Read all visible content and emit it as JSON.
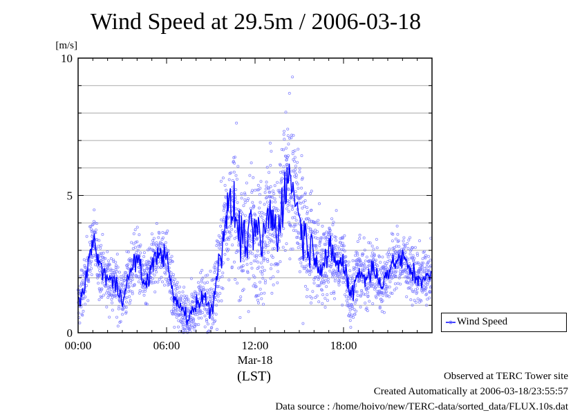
{
  "chart_data": {
    "type": "line",
    "title": "Wind Speed at 29.5m / 2006-03-18",
    "y_unit": "[m/s]",
    "ylim": [
      0,
      10
    ],
    "yticks": [
      0,
      5,
      10
    ],
    "xlim_hours": [
      0,
      24
    ],
    "xtick_labels": [
      "00:00",
      "06:00",
      "12:00",
      "18:00"
    ],
    "x_date_label": "Mar-18",
    "x_unit_label": "(LST)",
    "grid": "horizontal",
    "legend_placement": "right, outside plot",
    "series": [
      {
        "name": "Wind Speed",
        "color": "#0000ff",
        "marker_color": "#7777ff",
        "x_hours": [
          0,
          0.5,
          1,
          1.5,
          2,
          2.5,
          3,
          3.5,
          4,
          4.5,
          5,
          5.5,
          6,
          6.5,
          7,
          7.5,
          8,
          8.5,
          9,
          9.5,
          10,
          10.5,
          11,
          11.5,
          12,
          12.5,
          13,
          13.5,
          14,
          14.5,
          15,
          15.5,
          16,
          16.5,
          17,
          17.5,
          18,
          18.5,
          19,
          19.5,
          20,
          20.5,
          21,
          21.5,
          22,
          22.5,
          23,
          23.5
        ],
        "values": [
          1.0,
          1.9,
          3.4,
          2.4,
          2.0,
          1.8,
          1.3,
          2.1,
          2.8,
          1.7,
          2.4,
          3.0,
          2.7,
          1.2,
          0.9,
          0.5,
          1.1,
          1.3,
          0.8,
          2.3,
          4.3,
          4.6,
          3.5,
          3.4,
          3.8,
          3.2,
          4.5,
          3.4,
          5.4,
          5.6,
          4.1,
          3.3,
          3.0,
          2.4,
          2.9,
          2.6,
          2.5,
          1.3,
          2.3,
          2.0,
          2.3,
          1.8,
          2.2,
          2.6,
          2.7,
          2.3,
          2.0,
          2.0
        ],
        "scatter_spread": [
          0.8,
          0.8,
          1.0,
          0.9,
          0.9,
          0.9,
          0.9,
          0.9,
          0.9,
          0.8,
          0.9,
          0.9,
          0.9,
          0.8,
          0.7,
          0.7,
          0.8,
          0.9,
          1.0,
          1.4,
          2.0,
          2.1,
          2.0,
          2.0,
          2.0,
          2.0,
          2.2,
          2.1,
          2.2,
          2.2,
          2.0,
          1.8,
          1.6,
          1.4,
          1.3,
          1.2,
          1.2,
          1.0,
          1.0,
          1.0,
          1.0,
          0.9,
          0.9,
          0.9,
          0.9,
          0.8,
          0.8,
          0.8
        ]
      }
    ]
  },
  "footer": {
    "line1": "Observed at TERC Tower site",
    "line2": "Created Automatically at 2006-03-18/23:55:57",
    "line3": "Data source : /home/hoivo/new/TERC-data/sorted_data/FLUX.10s.dat"
  }
}
